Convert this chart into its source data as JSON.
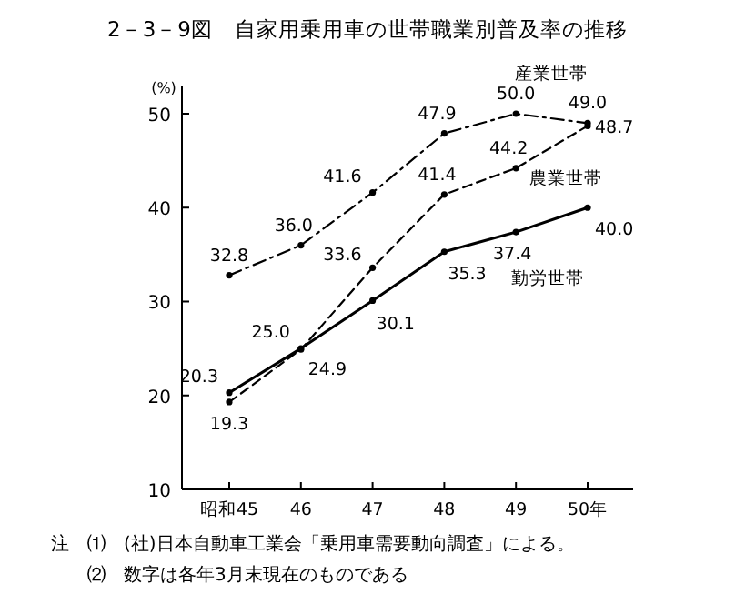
{
  "chart_data": {
    "type": "line",
    "title": "2－3－9図　自家用乗用車の世帯職業別普及率の推移",
    "ylabel": "(%)",
    "categories": [
      "昭和45",
      "46",
      "47",
      "48",
      "49",
      "50年"
    ],
    "series": [
      {
        "name": "産業世帯",
        "color": "#000000",
        "line_style": "dashdot",
        "values": [
          32.8,
          36.0,
          41.6,
          47.9,
          50.0,
          49.0
        ],
        "value_labels": [
          "32.8",
          "36.0",
          "41.6",
          "47.9",
          "50.0",
          "49.0"
        ]
      },
      {
        "name": "農業世帯",
        "color": "#000000",
        "line_style": "dashed",
        "values": [
          19.3,
          24.9,
          33.6,
          41.4,
          44.2,
          48.7
        ],
        "value_labels": [
          "19.3",
          "24.9",
          "33.6",
          "41.4",
          "44.2",
          "48.7"
        ]
      },
      {
        "name": "勤労世帯",
        "color": "#000000",
        "line_style": "solid",
        "values": [
          20.3,
          25.0,
          30.1,
          35.3,
          37.4,
          40.0
        ],
        "value_labels": [
          "20.3",
          "25.0",
          "30.1",
          "35.3",
          "37.4",
          "40.0"
        ]
      }
    ],
    "ylim": [
      10,
      53
    ],
    "yticks": [
      10,
      20,
      30,
      40,
      50
    ],
    "marker": "circle",
    "grid": false,
    "annotations": [
      "注　⑴　(社)日本自動車工業会「乗用車需要動向調査」による。",
      "⑵　数字は各年3月末現在のものである"
    ]
  }
}
